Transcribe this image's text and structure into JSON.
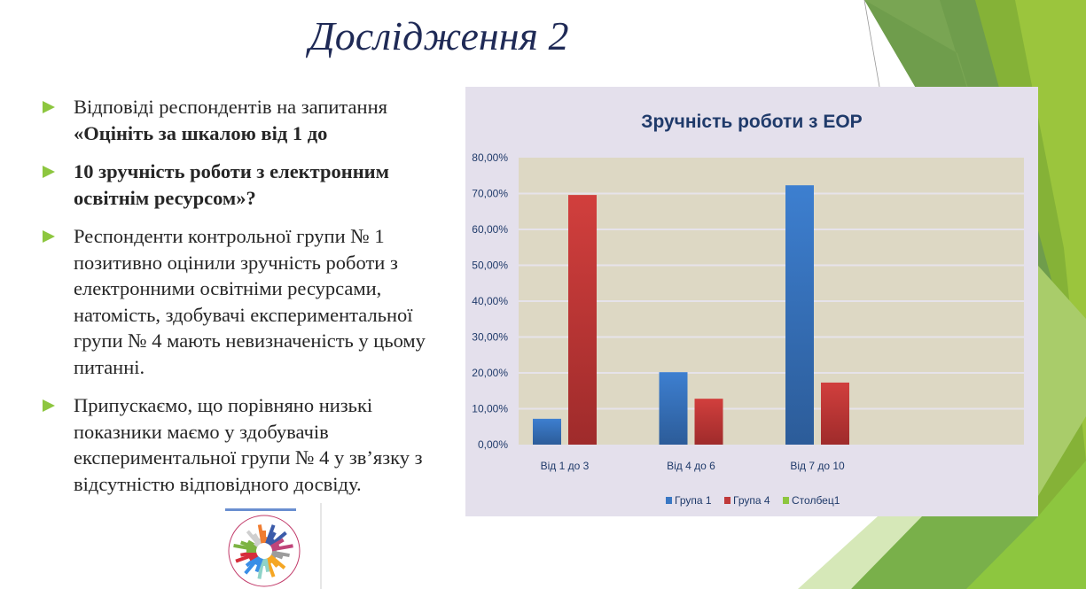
{
  "slide": {
    "title": "Дослідження 2",
    "bullets": [
      {
        "lines": [
          {
            "text": "Відповіді респондентів на запитання",
            "bold": false
          },
          {
            "text": "«Оцініть за шкалою від 1 до",
            "bold": true
          }
        ]
      },
      {
        "lines": [
          {
            "text": "10 зручність роботи з електронним освітнім ресурсом»?",
            "bold": true
          }
        ]
      },
      {
        "lines": [
          {
            "text": " Респонденти контрольної групи № 1 позитивно оцінили зручність роботи з електронними освітніми ресурсами, натомість, здобувачі експериментальної групи № 4 мають невизначеність у цьому питанні.",
            "bold": false
          }
        ]
      },
      {
        "lines": [
          {
            "text": "Припускаємо, що порівняно низькі показники маємо у здобувачів експериментальної групи № 4 у зв’язку з відсутністю відповідного досвіду.",
            "bold": false
          }
        ]
      }
    ],
    "bullet_icon": "triangle-right-icon",
    "accent_color": "#8dc63f",
    "thumbnail_image": "circular-bar-chart-image"
  },
  "chart_data": {
    "type": "bar",
    "title": "Зручність роботи з ЕОР",
    "categories": [
      "Від 1 до 3",
      "Від 4 до 6",
      "Від 7 до 10",
      ""
    ],
    "series": [
      {
        "name": "Група 1",
        "values": [
          7.2,
          20.2,
          72.3,
          null
        ],
        "color": "#3a78c4"
      },
      {
        "name": "Група 4",
        "values": [
          69.6,
          12.8,
          17.3,
          null
        ],
        "color": "#c0393a"
      },
      {
        "name": "Столбец1",
        "values": [
          null,
          null,
          null,
          null
        ],
        "color": "#8dc63f"
      }
    ],
    "ylim": [
      0,
      80
    ],
    "yticks": [
      "0,00%",
      "10,00%",
      "20,00%",
      "30,00%",
      "40,00%",
      "50,00%",
      "60,00%",
      "70,00%",
      "80,00%"
    ],
    "grid": true,
    "legend": "bottom",
    "xlabel": "",
    "ylabel": ""
  }
}
